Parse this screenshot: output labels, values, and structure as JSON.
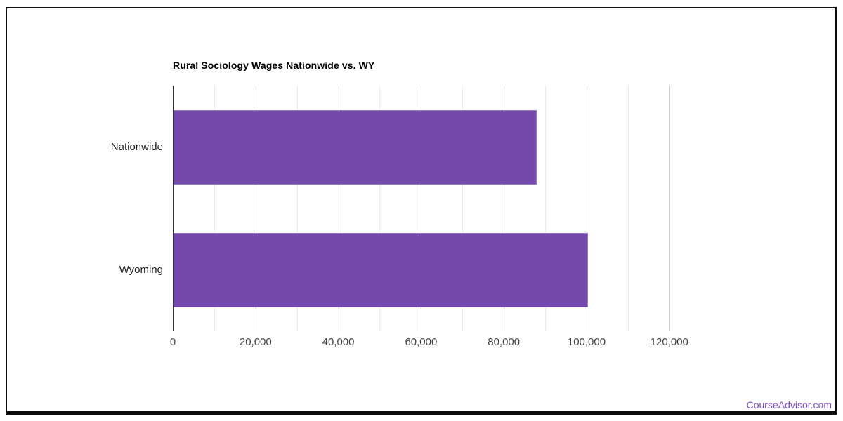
{
  "chart_data": {
    "type": "bar",
    "orientation": "horizontal",
    "title": "Rural Sociology Wages Nationwide vs. WY",
    "categories": [
      "Nationwide",
      "Wyoming"
    ],
    "values": [
      88000,
      100400
    ],
    "xlabel": "",
    "ylabel": "",
    "axis_max": 126316,
    "x_ticks": [
      0,
      20000,
      40000,
      60000,
      80000,
      100000,
      120000
    ],
    "x_tick_labels": [
      "0",
      "20,000",
      "40,000",
      "60,000",
      "80,000",
      "100,000",
      "120,000"
    ],
    "minor_grid_step": 10000,
    "major_grid_step": 20000,
    "grid": true,
    "legend": "none"
  },
  "colors": {
    "bar_fill": "#7349ac",
    "bar_stroke": "#9678cf",
    "axis_line": "#333333",
    "major_gridline": "#cccccc",
    "minor_gridline": "#ebebeb",
    "title_text": "#000000",
    "category_label": "#212121",
    "tick_label": "#444444",
    "frame_border": "#0d0d0d",
    "brand_link": "#7e52c5"
  },
  "footer": {
    "brand_label": "CourseAdvisor.com"
  }
}
